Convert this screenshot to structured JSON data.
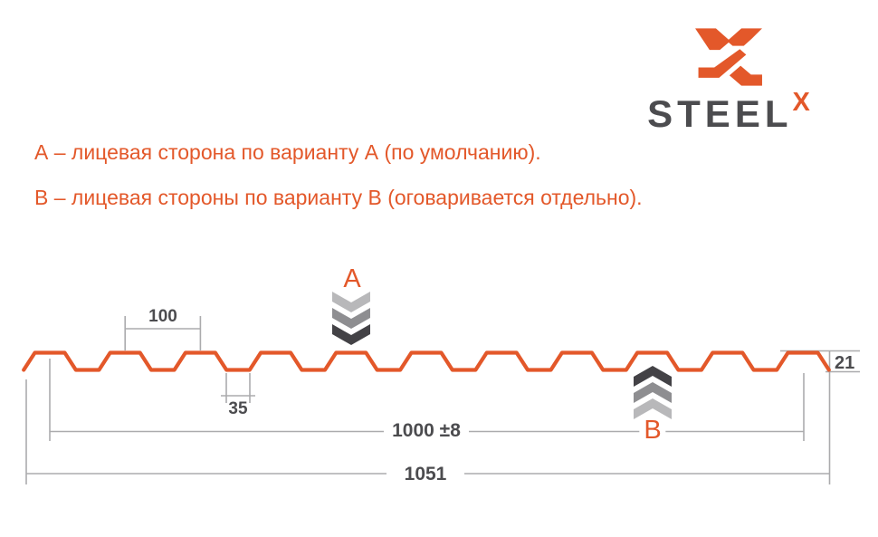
{
  "logo": {
    "wordmark": "STEEL",
    "superscript": "X"
  },
  "description": {
    "line_a": "А – лицевая сторона по варианту А (по умолчанию).",
    "line_b": "В – лицевая стороны по варианту В (оговаривается отдельно)."
  },
  "diagram": {
    "type": "corrugated-sheet-profile-cross-section",
    "ribs_visible": 11,
    "labels": {
      "pitch": "100",
      "valley": "35",
      "height": "21",
      "working_width": "1000 ±8",
      "overall_width": "1051"
    },
    "markers": {
      "front_side": "А",
      "back_side": "В"
    }
  },
  "colors": {
    "accent": "#E3582A",
    "ink": "#4C4C4F",
    "dim-line": "#ABABAD",
    "chev-light": "#B8B8BA",
    "chev-mid": "#8E8E91",
    "chev-dark": "#434246",
    "background": "#FFFFFF"
  }
}
